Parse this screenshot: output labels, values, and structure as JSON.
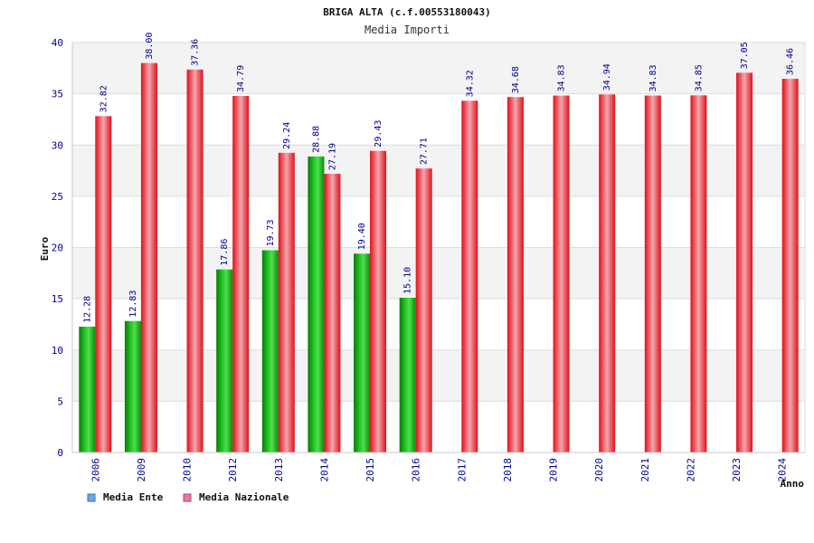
{
  "chart_data": {
    "type": "bar",
    "title": "BRIGA ALTA (c.f.00553180043)",
    "subtitle": "Media Importi",
    "xlabel": "Anno",
    "ylabel": "Euro",
    "ylim": [
      0,
      40
    ],
    "yticks": [
      0,
      5,
      10,
      15,
      20,
      25,
      30,
      35,
      40
    ],
    "grid": true,
    "legend_position": "bottom-left",
    "categories": [
      "2006",
      "2009",
      "2010",
      "2012",
      "2013",
      "2014",
      "2015",
      "2016",
      "2017",
      "2018",
      "2019",
      "2020",
      "2021",
      "2022",
      "2023",
      "2024"
    ],
    "series": [
      {
        "name": "Media Ente",
        "legend_color": "#6aa8e8",
        "bar_color": "#18b018",
        "values": [
          12.28,
          12.83,
          null,
          17.86,
          19.73,
          28.88,
          19.4,
          15.1,
          null,
          null,
          null,
          null,
          null,
          null,
          null,
          null
        ],
        "labels": [
          "12.28",
          "12.83",
          "",
          "17.86",
          "19.73",
          "28.88",
          "19.40",
          "15.10",
          "",
          "",
          "",
          "",
          "",
          "",
          "",
          ""
        ]
      },
      {
        "name": "Media Nazionale",
        "legend_color": "#e87aa0",
        "bar_color": "#e8202c",
        "values": [
          32.82,
          38.0,
          37.36,
          34.79,
          29.24,
          27.19,
          29.43,
          27.71,
          34.32,
          34.68,
          34.83,
          34.94,
          34.83,
          34.85,
          37.05,
          36.46
        ],
        "labels": [
          "32.82",
          "38.00",
          "37.36",
          "34.79",
          "29.24",
          "27.19",
          "29.43",
          "27.71",
          "34.32",
          "34.68",
          "34.83",
          "34.94",
          "34.83",
          "34.85",
          "37.05",
          "36.46"
        ]
      }
    ]
  }
}
